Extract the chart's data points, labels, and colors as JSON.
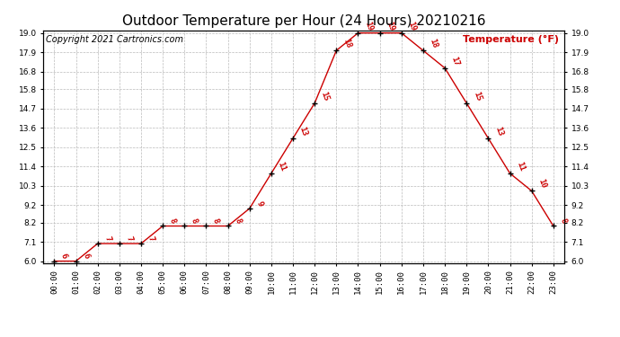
{
  "title": "Outdoor Temperature per Hour (24 Hours) 20210216",
  "copyright": "Copyright 2021 Cartronics.com",
  "legend_label": "Temperature (°F)",
  "hours": [
    "00:00",
    "01:00",
    "02:00",
    "03:00",
    "04:00",
    "05:00",
    "06:00",
    "07:00",
    "08:00",
    "09:00",
    "10:00",
    "11:00",
    "12:00",
    "13:00",
    "14:00",
    "15:00",
    "16:00",
    "17:00",
    "18:00",
    "19:00",
    "20:00",
    "21:00",
    "22:00",
    "23:00"
  ],
  "temperatures": [
    6,
    6,
    7,
    7,
    7,
    8,
    8,
    8,
    8,
    9,
    11,
    13,
    15,
    18,
    19,
    19,
    19,
    18,
    17,
    15,
    13,
    11,
    10,
    8
  ],
  "line_color": "#cc0000",
  "marker_color": "black",
  "label_color": "#cc0000",
  "grid_color": "#bbbbbb",
  "background_color": "#ffffff",
  "ylim_min": 6.0,
  "ylim_max": 19.0,
  "yticks": [
    6.0,
    7.1,
    8.2,
    9.2,
    10.3,
    11.4,
    12.5,
    13.6,
    14.7,
    15.8,
    16.8,
    17.9,
    19.0
  ],
  "title_fontsize": 11,
  "label_fontsize": 6.5,
  "copyright_fontsize": 7,
  "legend_fontsize": 8,
  "tick_fontsize": 6.5,
  "annotation_rotation": -70
}
